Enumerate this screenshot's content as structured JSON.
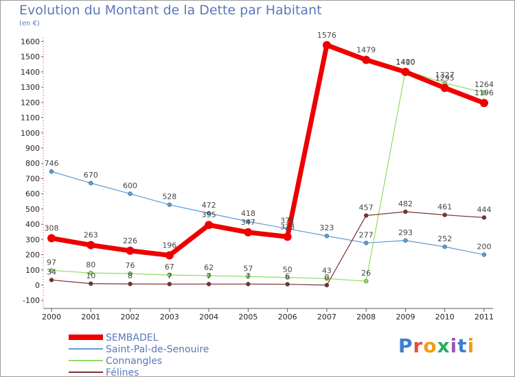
{
  "chart_data": {
    "type": "line",
    "title": "Evolution du Montant de la Dette par Habitant",
    "unit_label": "(en €)",
    "x": [
      "2000",
      "2001",
      "2002",
      "2003",
      "2004",
      "2005",
      "2006",
      "2007",
      "2008",
      "2009",
      "2010",
      "2011"
    ],
    "y_ticks": [
      "-100",
      "0",
      "100",
      "200",
      "300",
      "400",
      "500",
      "600",
      "700",
      "800",
      "900",
      "1000",
      "1100",
      "1200",
      "1300",
      "1400",
      "1500",
      "1600"
    ],
    "ylim": [
      -100,
      1650
    ],
    "grid": false,
    "legend": "bottom-left",
    "series": [
      {
        "name": "Saint-Pal-de-Senouire",
        "color": "#5b9bd5",
        "values": [
          746,
          670,
          600,
          528,
          472,
          418,
          371,
          323,
          277,
          293,
          252,
          200
        ]
      },
      {
        "name": "Connangles",
        "color": "#8fdc60",
        "values": [
          97,
          80,
          76,
          67,
          62,
          57,
          50,
          43,
          26,
          1410,
          1327,
          1264
        ]
      },
      {
        "name": "Félines",
        "color": "#7a2f2f",
        "values": [
          34,
          10,
          8,
          7,
          7,
          7,
          6,
          0,
          457,
          482,
          461,
          444
        ]
      },
      {
        "name": "SEMBADEL",
        "color": "#ee0000",
        "values": [
          308,
          263,
          226,
          196,
          395,
          347,
          318,
          1576,
          1479,
          1400,
          1295,
          1196
        ]
      }
    ],
    "legend_order": [
      "SEMBADEL",
      "Saint-Pal-de-Senouire",
      "Connangles",
      "Félines"
    ]
  },
  "logo": {
    "text": "Proxiti",
    "letter_colors": [
      "#3a7fd0",
      "#e84c3d",
      "#f39c12",
      "#27ae60",
      "#9b59b6",
      "#3a7fd0",
      "#f39c12"
    ]
  }
}
